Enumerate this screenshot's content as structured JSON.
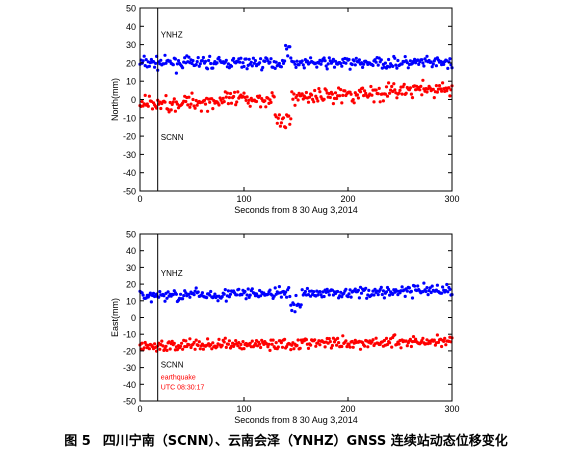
{
  "figure": {
    "caption_number": "图 5",
    "caption_text": "四川宁南（SCNN）、云南会泽（YNHZ）GNSS 连续站动态位移变化"
  },
  "chart_data": [
    {
      "type": "scatter",
      "ylabel": "North(mm)",
      "xlabel": "Seconds from 8 30 Aug 3,2014",
      "xlim": [
        0,
        300
      ],
      "ylim": [
        -50,
        50
      ],
      "xticks": [
        0,
        100,
        200,
        300
      ],
      "yticks": [
        -50,
        -40,
        -30,
        -20,
        -10,
        0,
        10,
        20,
        30,
        40,
        50
      ],
      "grid": false,
      "event_line_x": 17,
      "annotations": [
        {
          "text": "YNHZ",
          "x": 20,
          "y": 34,
          "color": "#000000"
        },
        {
          "text": "SCNN",
          "x": 20,
          "y": -22,
          "color": "#000000"
        }
      ],
      "series": [
        {
          "name": "YNHZ",
          "color": "#0000ff",
          "generator": {
            "base": 20,
            "noise": 2.2,
            "spikes": [
              [
                140,
                145,
                10
              ]
            ],
            "drift": 0
          }
        },
        {
          "name": "SCNN",
          "color": "#ff0000",
          "generator": {
            "base": -3,
            "noise": 3.0,
            "drift": 0.03,
            "spikes": [
              [
                130,
                145,
                -16
              ]
            ]
          }
        }
      ]
    },
    {
      "type": "scatter",
      "ylabel": "East(mm)",
      "xlabel": "Seconds from 8 30 Aug 3,2014",
      "xlim": [
        0,
        300
      ],
      "ylim": [
        -50,
        50
      ],
      "xticks": [
        0,
        100,
        200,
        300
      ],
      "yticks": [
        -50,
        -40,
        -30,
        -20,
        -10,
        0,
        10,
        20,
        30,
        40,
        50
      ],
      "grid": false,
      "event_line_x": 17,
      "annotations": [
        {
          "text": "YNHZ",
          "x": 20,
          "y": 25,
          "color": "#000000"
        },
        {
          "text": "SCNN",
          "x": 20,
          "y": -30,
          "color": "#000000"
        },
        {
          "text": "earthquake",
          "x": 20,
          "y": -37,
          "color": "#ff0000"
        },
        {
          "text": "UTC 08:30:17",
          "x": 20,
          "y": -43,
          "color": "#ff0000"
        }
      ],
      "series": [
        {
          "name": "YNHZ",
          "color": "#0000ff",
          "generator": {
            "base": 13,
            "noise": 2.4,
            "drift": 0.01,
            "spikes": [
              [
                145,
                155,
                -10
              ]
            ]
          }
        },
        {
          "name": "SCNN",
          "color": "#ff0000",
          "generator": {
            "base": -17,
            "noise": 2.6,
            "drift": 0.01,
            "spikes": []
          }
        }
      ]
    }
  ]
}
